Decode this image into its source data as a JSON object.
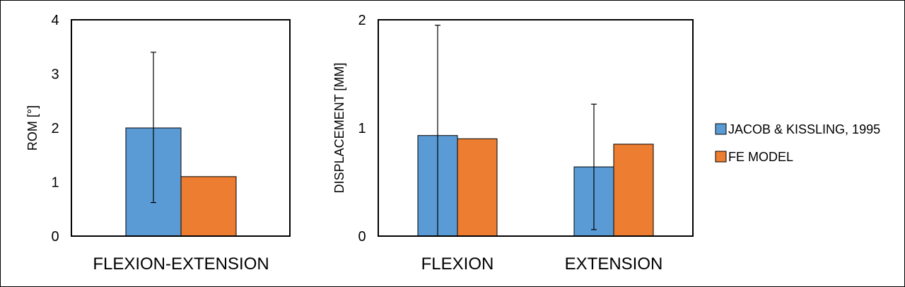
{
  "colors": {
    "series_a": "#5b9bd5",
    "series_b": "#ed7d31"
  },
  "legend": {
    "items": [
      {
        "label": "JACOB & KISSLING, 1995",
        "color": "#5b9bd5"
      },
      {
        "label": "FE MODEL",
        "color": "#ed7d31"
      }
    ]
  },
  "chart_data": [
    {
      "type": "bar",
      "ylabel": "ROM [°]",
      "ylim": [
        0,
        4
      ],
      "yticks": [
        0,
        1,
        2,
        3,
        4
      ],
      "categories": [
        "FLEXION-EXTENSION"
      ],
      "series": [
        {
          "name": "JACOB & KISSLING, 1995",
          "values": [
            2.0
          ],
          "error_low": [
            0.62
          ],
          "error_high": [
            3.4
          ]
        },
        {
          "name": "FE MODEL",
          "values": [
            1.1
          ]
        }
      ]
    },
    {
      "type": "bar",
      "ylabel": "DISPLACEMENT [MM]",
      "ylim": [
        0,
        2
      ],
      "yticks": [
        0,
        1,
        2
      ],
      "categories": [
        "FLEXION",
        "EXTENSION"
      ],
      "series": [
        {
          "name": "JACOB & KISSLING, 1995",
          "values": [
            0.93,
            0.64
          ],
          "error_low": [
            0,
            0.06
          ],
          "error_high": [
            1.95,
            1.22
          ]
        },
        {
          "name": "FE MODEL",
          "values": [
            0.9,
            0.85
          ]
        }
      ]
    }
  ]
}
